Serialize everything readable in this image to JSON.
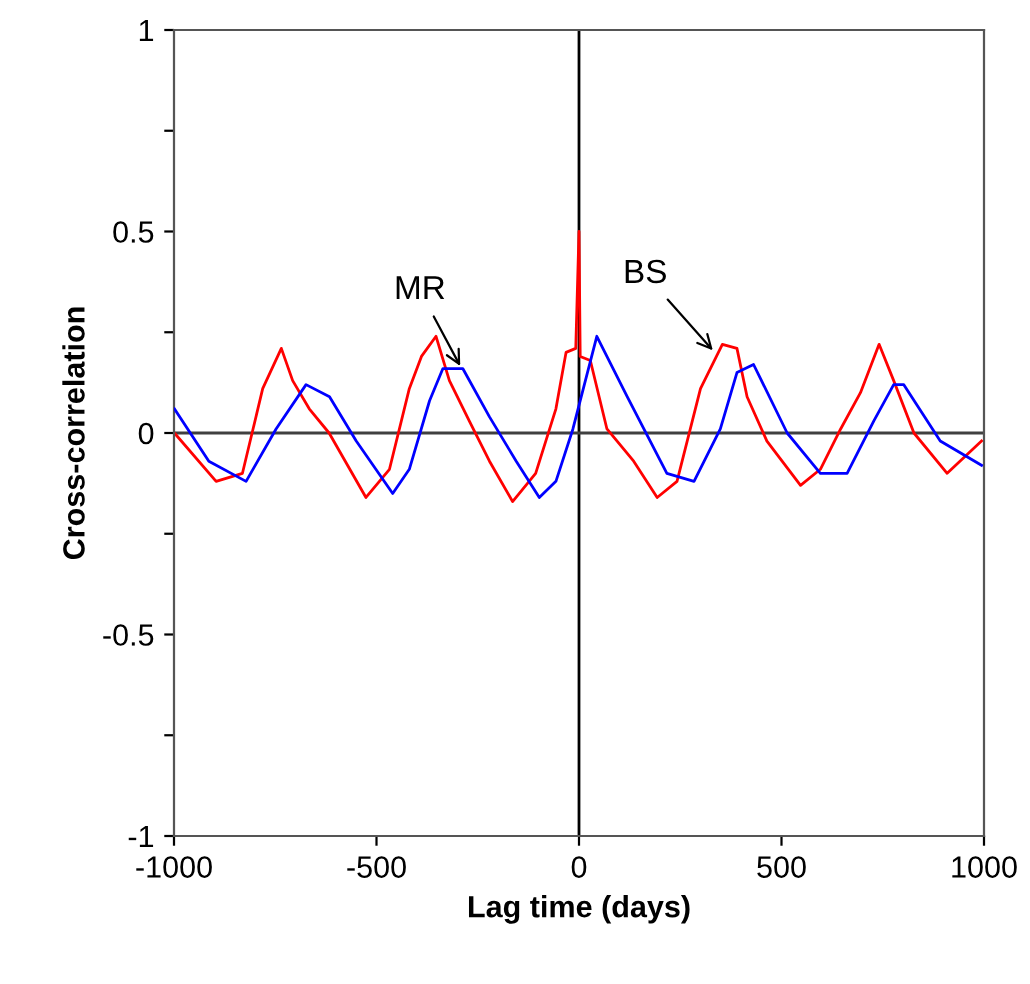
{
  "chart_data": {
    "type": "line",
    "xlabel": "Lag time (days)",
    "ylabel": "Cross-correlation",
    "xlim": [
      -1000,
      1000
    ],
    "ylim": [
      -1,
      1
    ],
    "xticks": [
      -1000,
      -500,
      0,
      500,
      1000
    ],
    "yticks": [
      -1,
      {
        "value": -0.75,
        "label": null
      },
      -0.5,
      {
        "value": -0.25,
        "label": null
      },
      0,
      {
        "value": 0.25,
        "label": null
      },
      0.5,
      {
        "value": 0.75,
        "label": null
      },
      1
    ],
    "grid": false,
    "legend": false,
    "ref_lines": [
      {
        "axis": "x",
        "value": 0,
        "color": "#000000"
      },
      {
        "axis": "y",
        "value": 0,
        "color": "#404040"
      }
    ],
    "annotations": [
      {
        "text": "MR",
        "x": -290,
        "y": 0.16
      },
      {
        "text": "BS",
        "x": 335,
        "y": 0.2
      }
    ],
    "series": [
      {
        "color": "#ff0000",
        "x": [
          -999,
          -896,
          -831,
          -781,
          -735,
          -707,
          -666,
          -617,
          -526,
          -468,
          -419,
          -389,
          -353,
          -320,
          -271,
          -221,
          -164,
          -107,
          -57,
          -32,
          -8,
          0,
          3,
          28,
          69,
          135,
          193,
          242,
          300,
          354,
          390,
          415,
          464,
          547,
          596,
          646,
          695,
          741,
          777,
          827,
          909,
          994
        ],
        "values": [
          0,
          -0.12,
          -0.1,
          0.11,
          0.21,
          0.13,
          0.06,
          0,
          -0.16,
          -0.09,
          0.11,
          0.19,
          0.24,
          0.13,
          0.03,
          -0.07,
          -0.17,
          -0.1,
          0.06,
          0.2,
          0.21,
          0.5,
          0.19,
          0.18,
          0.01,
          -0.07,
          -0.16,
          -0.12,
          0.11,
          0.22,
          0.21,
          0.09,
          -0.02,
          -0.13,
          -0.09,
          0.01,
          0.1,
          0.22,
          0.13,
          0,
          -0.1,
          -0.02
        ]
      },
      {
        "color": "#0000ff",
        "x": [
          -999,
          -914,
          -822,
          -748,
          -674,
          -616,
          -550,
          -460,
          -419,
          -369,
          -336,
          -287,
          -221,
          -155,
          -98,
          -57,
          -15,
          44,
          119,
          217,
          284,
          349,
          390,
          431,
          514,
          596,
          662,
          728,
          777,
          802,
          892,
          994
        ],
        "values": [
          0.06,
          -0.07,
          -0.12,
          0.01,
          0.12,
          0.09,
          -0.02,
          -0.15,
          -0.09,
          0.08,
          0.16,
          0.16,
          0.04,
          -0.07,
          -0.16,
          -0.12,
          0.01,
          0.24,
          0.09,
          -0.1,
          -0.12,
          0.01,
          0.15,
          0.17,
          0,
          -0.1,
          -0.1,
          0.03,
          0.12,
          0.12,
          -0.02,
          -0.08
        ]
      }
    ]
  }
}
